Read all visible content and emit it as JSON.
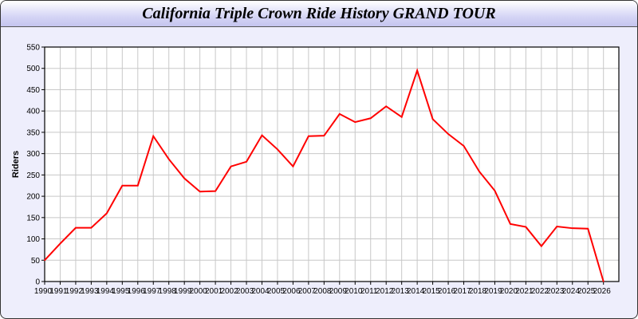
{
  "chart_data": {
    "type": "line",
    "title": "California Triple Crown Ride History GRAND TOUR",
    "xlabel": "",
    "ylabel": "Riders",
    "ylim": [
      0,
      550
    ],
    "yticks": [
      0,
      50,
      100,
      150,
      200,
      250,
      300,
      350,
      400,
      450,
      500,
      550
    ],
    "grid": true,
    "line_color": "#ff0000",
    "x": [
      1990,
      1991,
      1992,
      1993,
      1994,
      1995,
      1996,
      1997,
      1998,
      1999,
      2000,
      2001,
      2002,
      2003,
      2004,
      2005,
      2006,
      2007,
      2008,
      2009,
      2010,
      2011,
      2012,
      2013,
      2014,
      2015,
      2016,
      2017,
      2018,
      2019,
      2020,
      2021,
      2022,
      2023,
      2024,
      2025,
      2026
    ],
    "values": [
      50,
      89,
      126,
      126,
      160,
      225,
      225,
      341,
      287,
      242,
      211,
      212,
      270,
      281,
      343,
      310,
      270,
      341,
      342,
      393,
      374,
      383,
      411,
      386,
      495,
      381,
      346,
      318,
      258,
      213,
      135,
      128,
      83,
      129,
      125,
      124,
      0
    ]
  }
}
